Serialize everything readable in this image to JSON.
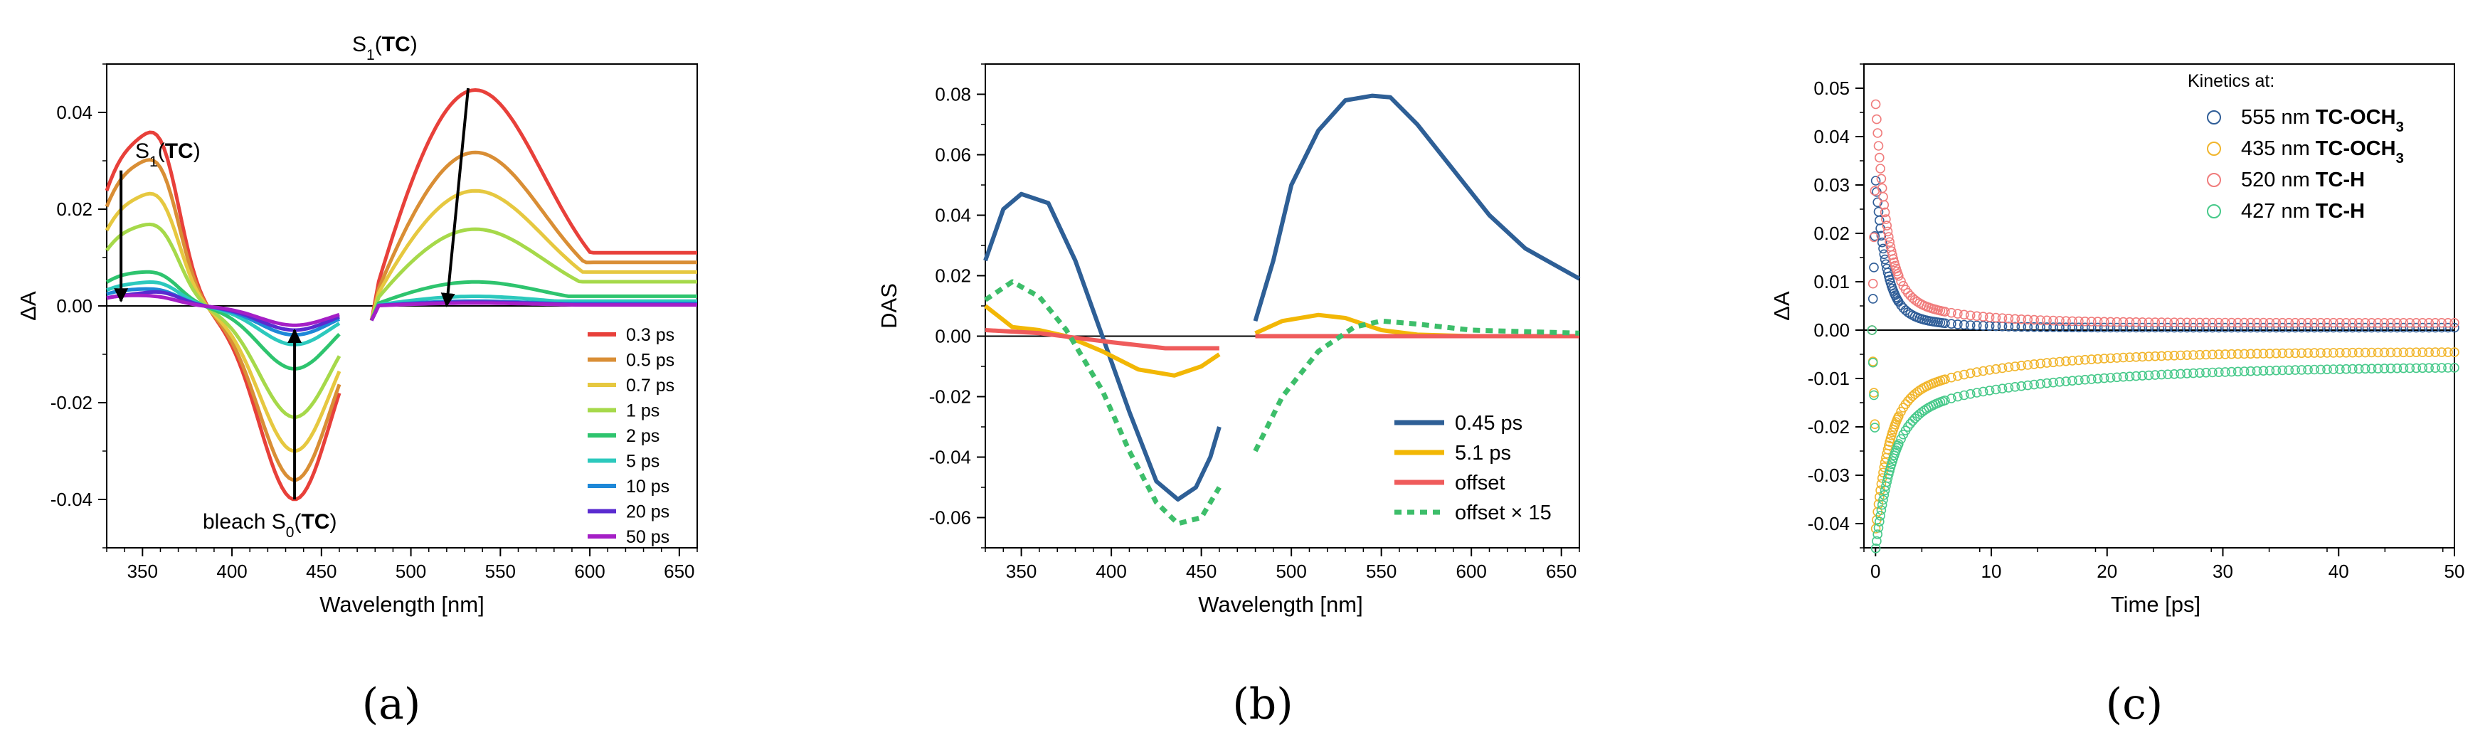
{
  "chart_data": [
    {
      "panel_label": "(a)",
      "type": "line",
      "xlabel": "Wavelength [nm]",
      "ylabel": "ΔA",
      "xlim": [
        330,
        660
      ],
      "ylim": [
        -0.05,
        0.05
      ],
      "xticks": [
        350,
        400,
        450,
        500,
        550,
        600,
        650
      ],
      "xtick_labels": [
        "350",
        "400",
        "450",
        "500",
        "550",
        "600",
        "650"
      ],
      "yticks": [
        -0.04,
        -0.02,
        0.0,
        0.02,
        0.04
      ],
      "ytick_labels": [
        "-0.04",
        "-0.02",
        "0.00",
        "0.02",
        "0.04"
      ],
      "gap": [
        460,
        478
      ],
      "annotations": {
        "s1_left": {
          "pre": "S",
          "sub": "1",
          "mid": "(",
          "bold": "TC",
          "post": ")"
        },
        "s1_right": {
          "pre": "S",
          "sub": "1",
          "mid": "(",
          "bold": "TC",
          "post": ")"
        },
        "bleach": {
          "pre": "bleach S",
          "sub": "0",
          "mid": "(",
          "bold": "TC",
          "post": ")"
        }
      },
      "arrows": [
        {
          "x1": 338,
          "y1": 0.028,
          "x2": 338,
          "y2": 0.001
        },
        {
          "x1": 532,
          "y1": 0.045,
          "x2": 520,
          "y2": 0.0
        },
        {
          "x1": 435,
          "y1": -0.04,
          "x2": 435,
          "y2": -0.005
        }
      ],
      "legend": {
        "position": "bottom-right"
      },
      "series": [
        {
          "name": "0.3 ps",
          "color": "#e8403a",
          "left": {
            "a1": 0.029,
            "a2": 0.022,
            "dip": -0.04
          },
          "right": {
            "peak": 0.045,
            "tail": 0.011
          }
        },
        {
          "name": "0.5 ps",
          "color": "#d98e35",
          "left": {
            "a1": 0.025,
            "a2": 0.018,
            "dip": -0.036
          },
          "right": {
            "peak": 0.032,
            "tail": 0.009
          }
        },
        {
          "name": "0.7 ps",
          "color": "#e6c840",
          "left": {
            "a1": 0.019,
            "a2": 0.014,
            "dip": -0.03
          },
          "right": {
            "peak": 0.024,
            "tail": 0.007
          }
        },
        {
          "name": "1 ps",
          "color": "#a6d94a",
          "left": {
            "a1": 0.014,
            "a2": 0.01,
            "dip": -0.023
          },
          "right": {
            "peak": 0.016,
            "tail": 0.005
          }
        },
        {
          "name": "2 ps",
          "color": "#2ec46e",
          "left": {
            "a1": 0.006,
            "a2": 0.004,
            "dip": -0.013
          },
          "right": {
            "peak": 0.005,
            "tail": 0.002
          }
        },
        {
          "name": "5 ps",
          "color": "#2cc9bd",
          "left": {
            "a1": 0.004,
            "a2": 0.003,
            "dip": -0.008
          },
          "right": {
            "peak": 0.002,
            "tail": 0.001
          }
        },
        {
          "name": "10 ps",
          "color": "#1e88d8",
          "left": {
            "a1": 0.003,
            "a2": 0.002,
            "dip": -0.006
          },
          "right": {
            "peak": 0.001,
            "tail": 0.0005
          }
        },
        {
          "name": "20 ps",
          "color": "#5a2bd0",
          "left": {
            "a1": 0.002,
            "a2": 0.002,
            "dip": -0.005
          },
          "right": {
            "peak": 0.0008,
            "tail": 0.0003
          }
        },
        {
          "name": "50 ps",
          "color": "#a51fc6",
          "left": {
            "a1": 0.002,
            "a2": 0.001,
            "dip": -0.004
          },
          "right": {
            "peak": 0.0006,
            "tail": 0.0002
          }
        }
      ]
    },
    {
      "panel_label": "(b)",
      "type": "line",
      "xlabel": "Wavelength [nm]",
      "ylabel": "DAS",
      "xlim": [
        330,
        660
      ],
      "ylim": [
        -0.07,
        0.09
      ],
      "xticks": [
        350,
        400,
        450,
        500,
        550,
        600,
        650
      ],
      "xtick_labels": [
        "350",
        "400",
        "450",
        "500",
        "550",
        "600",
        "650"
      ],
      "yticks": [
        -0.06,
        -0.04,
        -0.02,
        0.0,
        0.02,
        0.04,
        0.06,
        0.08
      ],
      "ytick_labels": [
        "-0.06",
        "-0.04",
        "-0.02",
        "0.00",
        "0.02",
        "0.04",
        "0.06",
        "0.08"
      ],
      "legend": {
        "position": "bottom-right"
      },
      "series": [
        {
          "name": "0.45 ps",
          "color": "#2e5f96",
          "dash": false,
          "segments": [
            [
              [
                330,
                0.025
              ],
              [
                340,
                0.042
              ],
              [
                350,
                0.047
              ],
              [
                365,
                0.044
              ],
              [
                380,
                0.025
              ],
              [
                395,
                0.0
              ],
              [
                410,
                -0.025
              ],
              [
                425,
                -0.048
              ],
              [
                437,
                -0.054
              ],
              [
                447,
                -0.05
              ],
              [
                455,
                -0.04
              ],
              [
                460,
                -0.03
              ]
            ],
            [
              [
                480,
                0.005
              ],
              [
                490,
                0.025
              ],
              [
                500,
                0.05
              ],
              [
                515,
                0.068
              ],
              [
                530,
                0.078
              ],
              [
                545,
                0.0795
              ],
              [
                555,
                0.079
              ],
              [
                570,
                0.07
              ],
              [
                590,
                0.055
              ],
              [
                610,
                0.04
              ],
              [
                630,
                0.029
              ],
              [
                660,
                0.019
              ]
            ]
          ]
        },
        {
          "name": "5.1 ps",
          "color": "#f2b705",
          "dash": false,
          "segments": [
            [
              [
                330,
                0.01
              ],
              [
                345,
                0.003
              ],
              [
                360,
                0.002
              ],
              [
                375,
                0.0
              ],
              [
                395,
                -0.005
              ],
              [
                415,
                -0.011
              ],
              [
                435,
                -0.013
              ],
              [
                450,
                -0.01
              ],
              [
                460,
                -0.006
              ]
            ],
            [
              [
                480,
                0.001
              ],
              [
                495,
                0.005
              ],
              [
                515,
                0.007
              ],
              [
                530,
                0.006
              ],
              [
                550,
                0.002
              ],
              [
                570,
                0.0005
              ],
              [
                600,
                0.0
              ],
              [
                660,
                0.0
              ]
            ]
          ]
        },
        {
          "name": "offset",
          "color": "#ef5b5b",
          "dash": false,
          "segments": [
            [
              [
                330,
                0.002
              ],
              [
                360,
                0.001
              ],
              [
                400,
                -0.002
              ],
              [
                430,
                -0.004
              ],
              [
                460,
                -0.004
              ]
            ],
            [
              [
                480,
                0.0
              ],
              [
                520,
                0.0
              ],
              [
                560,
                0.0
              ],
              [
                600,
                0.0
              ],
              [
                660,
                0.0
              ]
            ]
          ]
        },
        {
          "name": "offset × 15",
          "color": "#3dbe6a",
          "dash": true,
          "segments": [
            [
              [
                330,
                0.012
              ],
              [
                345,
                0.018
              ],
              [
                360,
                0.013
              ],
              [
                375,
                0.002
              ],
              [
                395,
                -0.018
              ],
              [
                410,
                -0.038
              ],
              [
                425,
                -0.055
              ],
              [
                437,
                -0.062
              ],
              [
                450,
                -0.06
              ],
              [
                460,
                -0.05
              ]
            ],
            [
              [
                480,
                -0.038
              ],
              [
                495,
                -0.02
              ],
              [
                515,
                -0.005
              ],
              [
                535,
                0.003
              ],
              [
                550,
                0.005
              ],
              [
                570,
                0.004
              ],
              [
                600,
                0.002
              ],
              [
                660,
                0.001
              ]
            ]
          ]
        }
      ]
    },
    {
      "panel_label": "(c)",
      "type": "scatter",
      "xlabel": "Time [ps]",
      "ylabel": "ΔA",
      "xlim": [
        -1,
        50
      ],
      "ylim": [
        -0.045,
        0.055
      ],
      "xticks": [
        0,
        10,
        20,
        30,
        40,
        50
      ],
      "xtick_labels": [
        "0",
        "10",
        "20",
        "30",
        "40",
        "50"
      ],
      "yticks": [
        -0.04,
        -0.03,
        -0.02,
        -0.01,
        0.0,
        0.01,
        0.02,
        0.03,
        0.04,
        0.05
      ],
      "ytick_labels": [
        "-0.04",
        "-0.03",
        "-0.02",
        "-0.01",
        "0.00",
        "0.01",
        "0.02",
        "0.03",
        "0.04",
        "0.05"
      ],
      "legend": {
        "title": "Kinetics at:",
        "position": "top-right"
      },
      "series": [
        {
          "label": "555 nm",
          "compound": "TC-OCH",
          "sub": "3",
          "color": "#2f5d97",
          "A": 0.027,
          "tau": 0.9,
          "B": 0.004,
          "tau2": 4.0,
          "offset": 0.0005
        },
        {
          "label": "435 nm",
          "compound": "TC-OCH",
          "sub": "3",
          "color": "#f1b52b",
          "A": -0.027,
          "tau": 1.2,
          "B": -0.01,
          "tau2": 10.0,
          "offset": -0.0045
        },
        {
          "label": "520 nm",
          "compound": "TC-H",
          "sub": "",
          "color": "#f07c7c",
          "A": 0.04,
          "tau": 1.0,
          "B": 0.006,
          "tau2": 6.0,
          "offset": 0.0015
        },
        {
          "label": "427 nm",
          "compound": "TC-H",
          "sub": "",
          "color": "#47c98a",
          "A": -0.028,
          "tau": 1.5,
          "B": -0.01,
          "tau2": 14.0,
          "offset": -0.0075
        }
      ]
    }
  ]
}
